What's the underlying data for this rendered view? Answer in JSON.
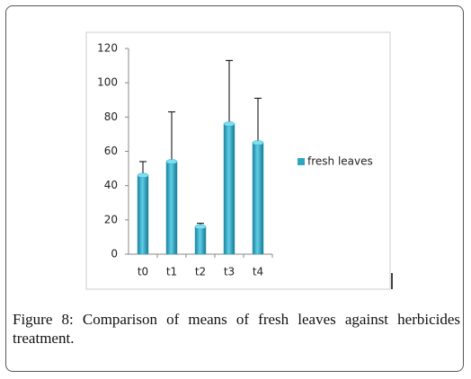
{
  "chart_data": {
    "type": "bar",
    "categories": [
      "t0",
      "t1",
      "t2",
      "t3",
      "t4"
    ],
    "series": [
      {
        "name": "fresh leaves",
        "color": "#2ea6c2",
        "values": [
          46,
          54,
          16,
          76,
          65
        ],
        "errors": [
          8,
          29,
          2,
          37,
          26
        ]
      }
    ],
    "ylim": [
      0,
      120
    ],
    "yticks": [
      0,
      20,
      40,
      60,
      80,
      100,
      120
    ],
    "grid": false,
    "legend": "right"
  },
  "caption": {
    "label": "Figure 8:",
    "text": "Comparison of means of fresh leaves against herbicides treatment."
  }
}
